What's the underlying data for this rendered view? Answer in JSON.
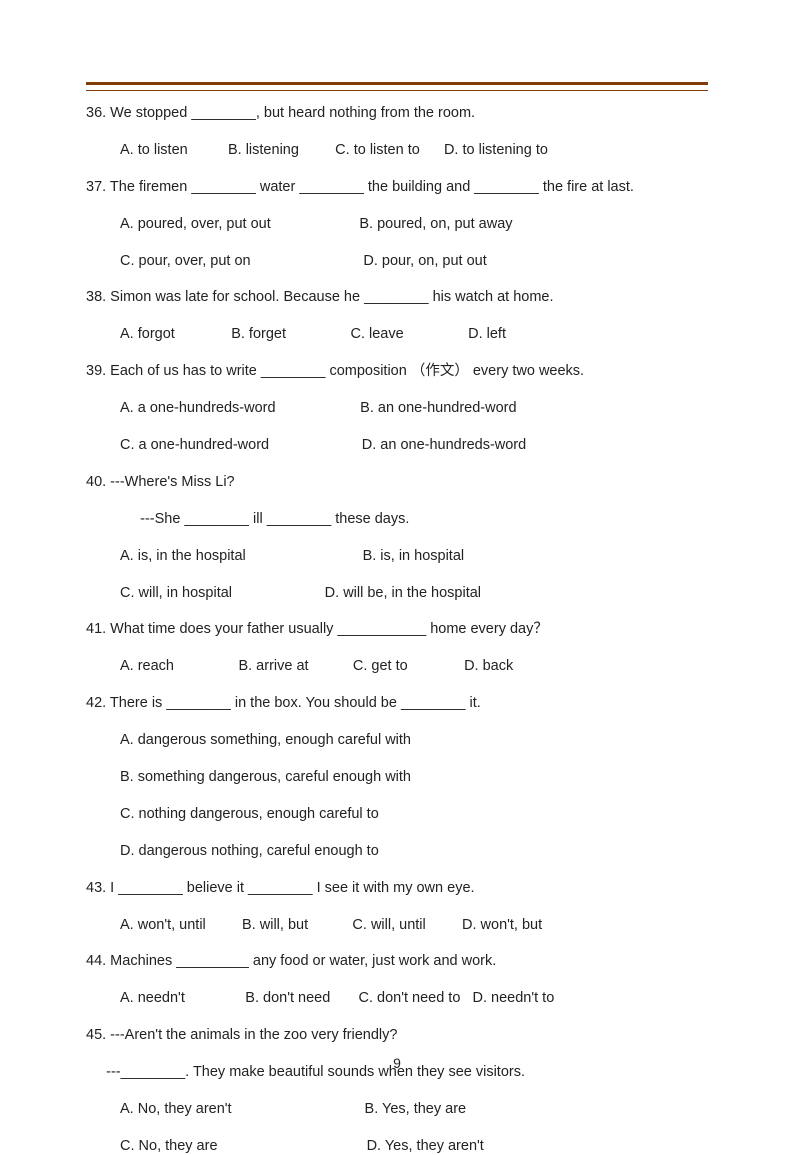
{
  "page_number": "9",
  "rule_color": "#823c0a",
  "lines": [
    {
      "text": "36. We stopped ________, but heard nothing from the room.",
      "indent": false
    },
    {
      "text": "A. to listen          B. listening         C. to listen to      D. to listening to",
      "indent": true
    },
    {
      "text": "37. The firemen ________ water ________ the building and ________ the fire at last.",
      "indent": false
    },
    {
      "text": "A. poured, over, put out                      B. poured, on, put away",
      "indent": true
    },
    {
      "text": "C. pour, over, put on                            D. pour, on, put out",
      "indent": true
    },
    {
      "text": "38. Simon was late for school. Because he ________ his watch at home.",
      "indent": false
    },
    {
      "text": "A. forgot              B. forget                C. leave                D. left",
      "indent": true
    },
    {
      "text": "39. Each of us has to write ________ composition （作文） every two weeks.",
      "indent": false
    },
    {
      "text": "A. a one-hundreds-word                     B. an one-hundred-word",
      "indent": true
    },
    {
      "text": "C. a one-hundred-word                       D. an one-hundreds-word",
      "indent": true
    },
    {
      "text": "40. ---Where's Miss Li?",
      "indent": false
    },
    {
      "text": "     ---She ________ ill ________ these days.",
      "indent": true
    },
    {
      "text": "A. is, in the hospital                             B. is, in hospital",
      "indent": true
    },
    {
      "text": "C. will, in hospital                       D. will be, in the hospital",
      "indent": true
    },
    {
      "text": "41. What time does your father usually ___________ home every day？",
      "indent": false
    },
    {
      "text": "A. reach                B. arrive at           C. get to              D. back",
      "indent": true
    },
    {
      "text": "42. There is ________ in the box. You should be ________ it.",
      "indent": false
    },
    {
      "text": "A. dangerous something, enough careful with",
      "indent": true
    },
    {
      "text": "B. something dangerous, careful enough with",
      "indent": true
    },
    {
      "text": "C. nothing dangerous, enough careful to",
      "indent": true
    },
    {
      "text": "D. dangerous nothing, careful enough to",
      "indent": true
    },
    {
      "text": "43. I ________ believe it ________ I see it with my own eye.",
      "indent": false
    },
    {
      "text": "A. won't, until         B. will, but           C. will, until         D. won't, but",
      "indent": true
    },
    {
      "text": "44. Machines _________ any food or water, just work and work.",
      "indent": false
    },
    {
      "text": "A. needn't               B. don't need       C. don't need to   D. needn't to",
      "indent": true
    },
    {
      "text": "45. ---Aren't the animals in the zoo very friendly?",
      "indent": false
    },
    {
      "text": "---________. They make beautiful sounds when they see visitors.",
      "indent": false,
      "leftpad": "     "
    },
    {
      "text": "A. No, they aren't                                 B. Yes, they are",
      "indent": true
    },
    {
      "text": "C. No, they are                                     D. Yes, they aren't",
      "indent": true
    }
  ]
}
